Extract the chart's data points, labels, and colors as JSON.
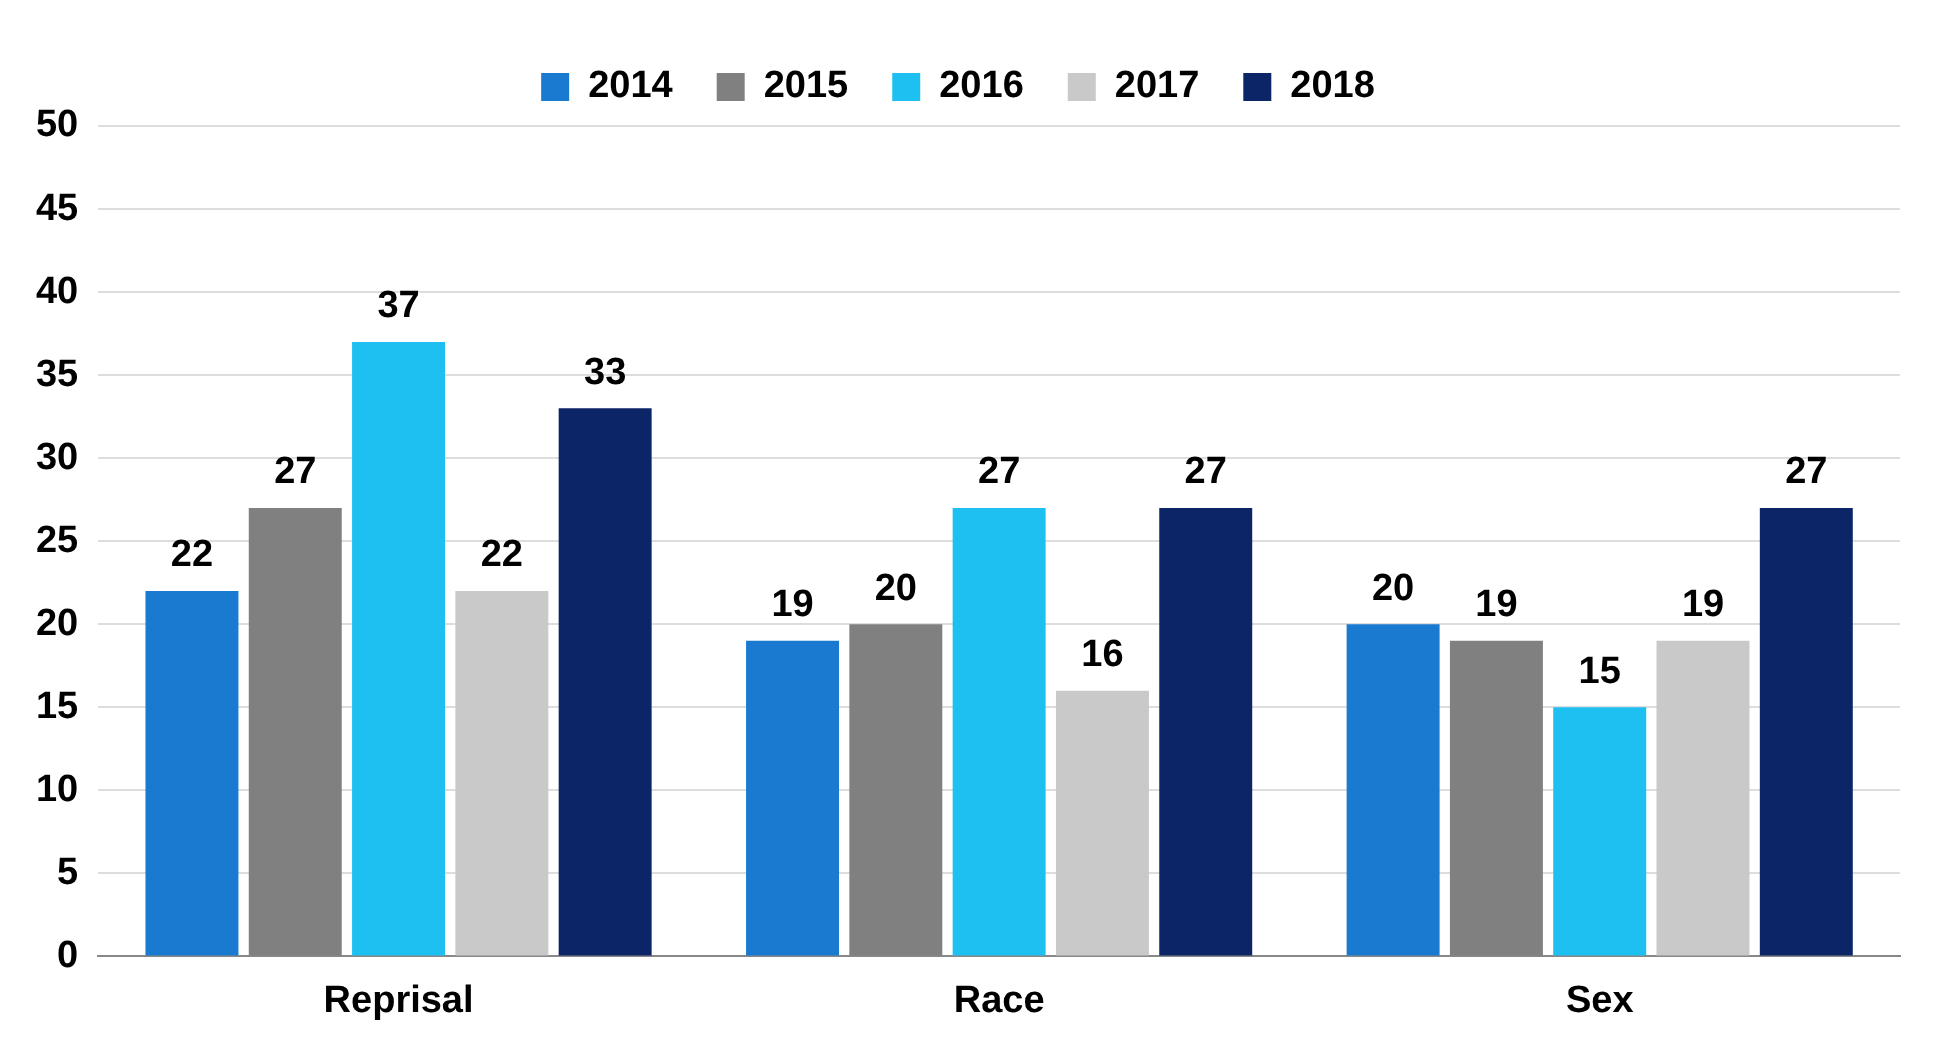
{
  "chart_data": {
    "type": "bar",
    "categories": [
      "Reprisal",
      "Race",
      "Sex"
    ],
    "series": [
      {
        "name": "2014",
        "color": "#1a7ad0",
        "values": [
          22,
          19,
          20
        ]
      },
      {
        "name": "2015",
        "color": "#808080",
        "values": [
          27,
          20,
          19
        ]
      },
      {
        "name": "2016",
        "color": "#1ec0f2",
        "values": [
          37,
          27,
          15
        ]
      },
      {
        "name": "2017",
        "color": "#c9c9c9",
        "values": [
          22,
          16,
          19
        ]
      },
      {
        "name": "2018",
        "color": "#0c2566",
        "values": [
          33,
          27,
          27
        ]
      }
    ],
    "ylim": [
      0,
      50
    ],
    "yticks": [
      0,
      5,
      10,
      15,
      20,
      25,
      30,
      35,
      40,
      45,
      50
    ],
    "grid": "y",
    "legend": "top",
    "data_labels": true
  }
}
